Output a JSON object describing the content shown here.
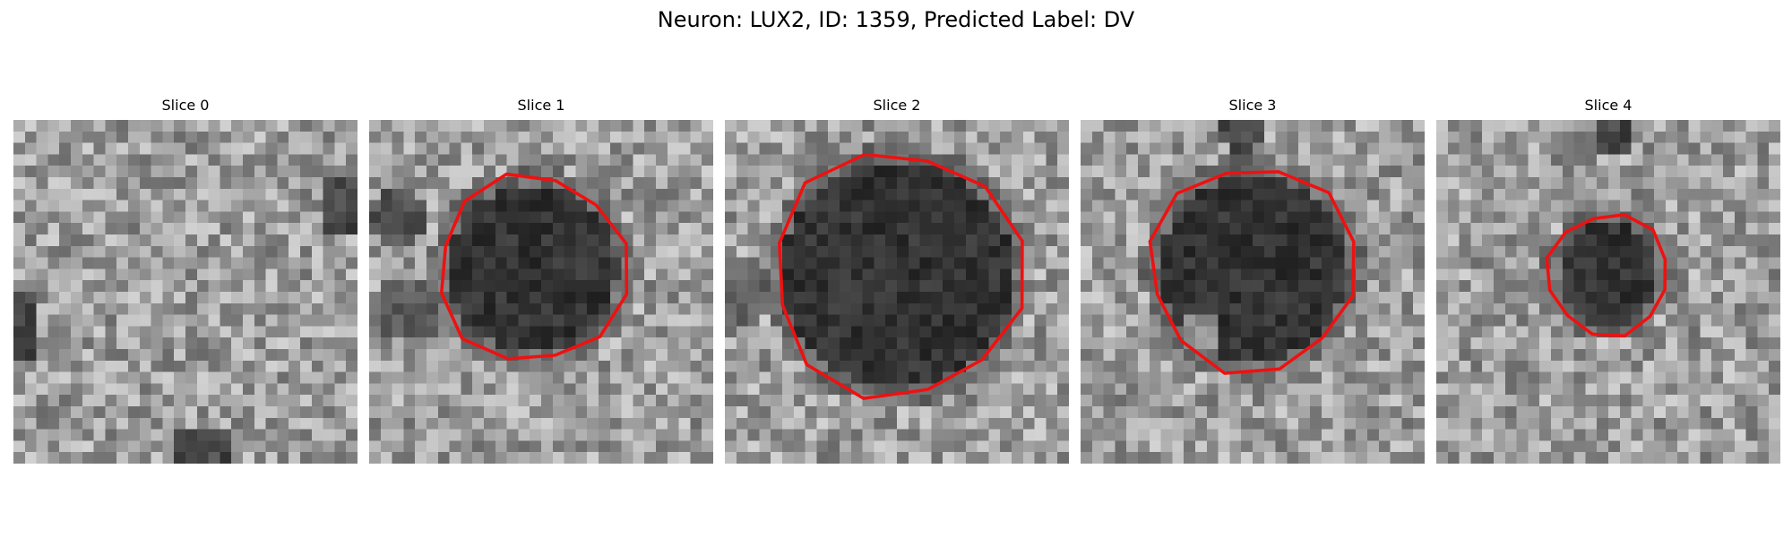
{
  "figure": {
    "title": "Neuron: LUX2, ID: 1359, Predicted Label: DV",
    "contour_color": "#ee1111",
    "colormap": "grayscale",
    "grid_size": 30
  },
  "slices": [
    {
      "title": "Slice 0",
      "has_contour": false,
      "blob": null
    },
    {
      "title": "Slice 1",
      "has_contour": true,
      "blob": {
        "cx": 14.2,
        "cy": 13.0,
        "r": 7.4,
        "extra": [
          {
            "cx": 3.5,
            "cy": 16.5,
            "r": 3.0,
            "d": 0.55
          },
          {
            "cx": 2.5,
            "cy": 8.5,
            "r": 2.5,
            "d": 0.45
          }
        ]
      }
    },
    {
      "title": "Slice 2",
      "has_contour": true,
      "blob": {
        "cx": 15.0,
        "cy": 13.5,
        "r": 10.0,
        "extra": [
          {
            "cx": 1.5,
            "cy": 15.0,
            "r": 3.0,
            "d": 0.6
          }
        ]
      }
    },
    {
      "title": "Slice 3",
      "has_contour": true,
      "blob": {
        "cx": 15.0,
        "cy": 13.0,
        "r": 8.2,
        "hole": {
          "cx": 10.5,
          "cy": 18.5,
          "r": 2.0
        },
        "extra": [
          {
            "cx": 14.0,
            "cy": 1.0,
            "r": 2.0,
            "d": 0.4
          }
        ]
      }
    },
    {
      "title": "Slice 4",
      "has_contour": true,
      "blob": {
        "cx": 15.0,
        "cy": 13.5,
        "r": 4.5,
        "extra": [
          {
            "cx": 15.5,
            "cy": 1.5,
            "r": 1.8,
            "d": 0.35
          }
        ]
      }
    }
  ]
}
